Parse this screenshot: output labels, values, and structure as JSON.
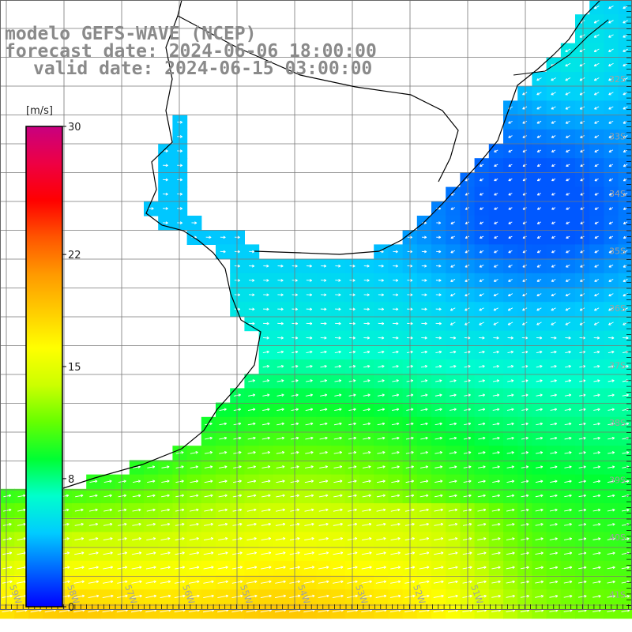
{
  "header": {
    "line1": "modelo GEFS-WAVE (NCEP)",
    "line2": "forecast date: 2024-06-06 18:00:00",
    "line3": "valid date: 2024-06-15 03:00:00"
  },
  "colorbar": {
    "unit": "[m/s]",
    "min": 0,
    "max": 30,
    "ticks": [
      {
        "value": 30,
        "label": "30"
      },
      {
        "value": 22,
        "label": "22"
      },
      {
        "value": 15,
        "label": "15"
      },
      {
        "value": 8,
        "label": "8"
      },
      {
        "value": 0,
        "label": "0"
      }
    ],
    "colors": [
      "#0000ff",
      "#0066ff",
      "#00ccff",
      "#00ffcc",
      "#00ff33",
      "#66ff00",
      "#ccff00",
      "#ffff00",
      "#ffcc00",
      "#ff9900",
      "#ff5500",
      "#ff0000",
      "#ee0044",
      "#c80080"
    ]
  },
  "map": {
    "lon_range": [
      -60,
      -49.4
    ],
    "lat_range": [
      -41.4,
      -30.5
    ],
    "lat_labels": [
      "32S",
      "33S",
      "34S",
      "35S",
      "36S",
      "37S",
      "38S",
      "39S",
      "40S",
      "41S"
    ],
    "lon_labels": [
      "59W",
      "58W",
      "57W",
      "56W",
      "55W",
      "54W",
      "53W",
      "52W",
      "51W"
    ],
    "grid_color": "#777777",
    "label_color": "#a0a0a0",
    "arrow_color": "#ffffff",
    "coast_color": "#000000"
  }
}
